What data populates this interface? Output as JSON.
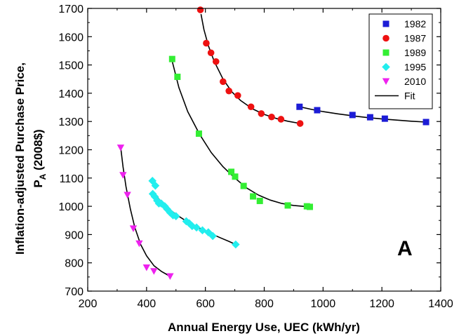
{
  "chart_data": {
    "type": "scatter",
    "xlabel": "Annual Energy Use, UEC (kWh/yr)",
    "ylabel_line1": "Inflation-adjusted Purchase Price,",
    "ylabel_line2_main": "P",
    "ylabel_line2_sub": "A",
    "ylabel_line2_rest": " (2008$)",
    "xlim": [
      200,
      1400
    ],
    "ylim": [
      700,
      1700
    ],
    "xticks": [
      200,
      400,
      600,
      800,
      1000,
      1200,
      1400
    ],
    "yticks": [
      700,
      800,
      900,
      1000,
      1100,
      1200,
      1300,
      1400,
      1500,
      1600,
      1700
    ],
    "panel_label": "A",
    "legend_position": "top-right",
    "fit_label": "Fit",
    "series": [
      {
        "name": "1982",
        "marker": "square",
        "color": "#1c1cd6",
        "points": [
          [
            920,
            1352
          ],
          [
            980,
            1340
          ],
          [
            1100,
            1323
          ],
          [
            1160,
            1315
          ],
          [
            1210,
            1310
          ],
          [
            1350,
            1298
          ]
        ],
        "fit": [
          [
            920,
            1352
          ],
          [
            960,
            1343
          ],
          [
            1000,
            1335
          ],
          [
            1050,
            1327
          ],
          [
            1100,
            1320
          ],
          [
            1150,
            1314
          ],
          [
            1200,
            1309
          ],
          [
            1250,
            1305
          ],
          [
            1300,
            1301
          ],
          [
            1350,
            1298
          ]
        ]
      },
      {
        "name": "1987",
        "marker": "circle",
        "color": "#ee1111",
        "points": [
          [
            583,
            1695
          ],
          [
            603,
            1577
          ],
          [
            619,
            1543
          ],
          [
            636,
            1512
          ],
          [
            660,
            1441
          ],
          [
            680,
            1408
          ],
          [
            710,
            1392
          ],
          [
            755,
            1352
          ],
          [
            790,
            1328
          ],
          [
            825,
            1316
          ],
          [
            857,
            1308
          ],
          [
            922,
            1293
          ]
        ],
        "fit": [
          [
            585,
            1680
          ],
          [
            595,
            1625
          ],
          [
            610,
            1568
          ],
          [
            630,
            1513
          ],
          [
            660,
            1450
          ],
          [
            690,
            1405
          ],
          [
            720,
            1374
          ],
          [
            760,
            1345
          ],
          [
            800,
            1325
          ],
          [
            840,
            1311
          ],
          [
            880,
            1301
          ],
          [
            922,
            1293
          ]
        ]
      },
      {
        "name": "1989",
        "marker": "square",
        "color": "#33ee33",
        "points": [
          [
            487,
            1521
          ],
          [
            505,
            1458
          ],
          [
            578,
            1257
          ],
          [
            688,
            1122
          ],
          [
            701,
            1105
          ],
          [
            730,
            1072
          ],
          [
            762,
            1035
          ],
          [
            785,
            1019
          ],
          [
            880,
            1003
          ],
          [
            945,
            1000
          ],
          [
            955,
            998
          ]
        ],
        "fit": [
          [
            488,
            1510
          ],
          [
            510,
            1420
          ],
          [
            540,
            1335
          ],
          [
            580,
            1255
          ],
          [
            620,
            1190
          ],
          [
            660,
            1140
          ],
          [
            700,
            1100
          ],
          [
            740,
            1065
          ],
          [
            780,
            1040
          ],
          [
            820,
            1022
          ],
          [
            860,
            1010
          ],
          [
            900,
            1003
          ],
          [
            955,
            998
          ]
        ]
      },
      {
        "name": "1995",
        "marker": "diamond",
        "color": "#22eeee",
        "points": [
          [
            420,
            1090
          ],
          [
            430,
            1073
          ],
          [
            421,
            1044
          ],
          [
            428,
            1034
          ],
          [
            436,
            1020
          ],
          [
            442,
            1010
          ],
          [
            450,
            1010
          ],
          [
            462,
            1000
          ],
          [
            470,
            990
          ],
          [
            480,
            978
          ],
          [
            490,
            968
          ],
          [
            500,
            965
          ],
          [
            535,
            947
          ],
          [
            545,
            940
          ],
          [
            555,
            930
          ],
          [
            570,
            925
          ],
          [
            590,
            915
          ],
          [
            610,
            908
          ],
          [
            625,
            895
          ],
          [
            703,
            865
          ]
        ],
        "fit": [
          [
            420,
            1055
          ],
          [
            440,
            1028
          ],
          [
            460,
            1006
          ],
          [
            480,
            988
          ],
          [
            500,
            971
          ],
          [
            530,
            951
          ],
          [
            560,
            932
          ],
          [
            590,
            917
          ],
          [
            620,
            903
          ],
          [
            650,
            889
          ],
          [
            680,
            876
          ],
          [
            703,
            865
          ]
        ]
      },
      {
        "name": "2010",
        "marker": "triangle-down",
        "color": "#ee22ee",
        "points": [
          [
            312,
            1207
          ],
          [
            320,
            1110
          ],
          [
            335,
            1040
          ],
          [
            355,
            921
          ],
          [
            375,
            868
          ],
          [
            400,
            783
          ],
          [
            425,
            770
          ],
          [
            480,
            752
          ]
        ],
        "fit": [
          [
            312,
            1210
          ],
          [
            320,
            1140
          ],
          [
            330,
            1070
          ],
          [
            345,
            990
          ],
          [
            360,
            925
          ],
          [
            380,
            865
          ],
          [
            400,
            825
          ],
          [
            425,
            790
          ],
          [
            450,
            770
          ],
          [
            480,
            752
          ]
        ]
      }
    ]
  }
}
